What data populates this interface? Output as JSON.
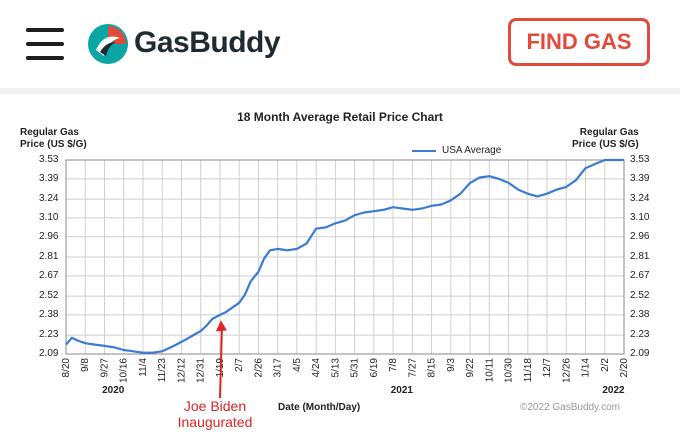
{
  "header": {
    "brand": "GasBuddy",
    "cta_label": "FIND GAS",
    "colors": {
      "accent": "#e24a3b",
      "brand_dark": "#1e2b33",
      "brand_teal": "#0aa5a5",
      "brand_red": "#e24a3b"
    }
  },
  "annotation": {
    "line1": "Joe Biden",
    "line2": "Inaugurated",
    "color": "#e02424"
  },
  "chart_data": {
    "type": "line",
    "title": "18 Month Average Retail Price Chart",
    "ylabel_line1": "Regular Gas",
    "ylabel_line2": "Price (US $/G)",
    "xlabel": "Date (Month/Day)",
    "legend": "USA Average",
    "legend_position": "top-right",
    "copyright": "©2022 GasBuddy.com",
    "grid": true,
    "series_color": "#3a7bd5",
    "ylim": [
      2.09,
      3.53
    ],
    "y_ticks": [
      "3.53",
      "3.39",
      "3.24",
      "3.10",
      "2.96",
      "2.81",
      "2.67",
      "2.52",
      "2.38",
      "2.23",
      "2.09"
    ],
    "x_ticks": [
      "8/20",
      "9/8",
      "9/27",
      "10/16",
      "11/4",
      "11/23",
      "12/12",
      "12/31",
      "1/19",
      "2/7",
      "2/26",
      "3/17",
      "4/5",
      "4/24",
      "5/13",
      "5/31",
      "6/19",
      "7/8",
      "7/27",
      "8/15",
      "9/3",
      "9/22",
      "10/11",
      "10/30",
      "11/18",
      "12/7",
      "12/26",
      "1/14",
      "2/2",
      "2/20"
    ],
    "x_years": [
      {
        "label": "2020",
        "at_index": 2.5
      },
      {
        "label": "2021",
        "at_index": 17.5
      },
      {
        "label": "2022",
        "at_index": 28.5
      }
    ],
    "x_range": [
      0,
      29
    ],
    "series": [
      {
        "name": "USA Average",
        "x": [
          0,
          0.3,
          0.6,
          1,
          1.5,
          2,
          2.5,
          3,
          3.5,
          4,
          4.5,
          5,
          5.3,
          5.6,
          6,
          6.5,
          7,
          7.3,
          7.6,
          8,
          8.3,
          8.6,
          9,
          9.3,
          9.6,
          10,
          10.3,
          10.6,
          11,
          11.5,
          12,
          12.5,
          13,
          13.5,
          14,
          14.5,
          15,
          15.5,
          16,
          16.5,
          17,
          17.5,
          18,
          18.5,
          19,
          19.5,
          20,
          20.5,
          21,
          21.5,
          22,
          22.5,
          23,
          23.5,
          24,
          24.5,
          25,
          25.5,
          26,
          26.5,
          27,
          27.5,
          28,
          28.5,
          29
        ],
        "values": [
          2.16,
          2.21,
          2.19,
          2.17,
          2.16,
          2.15,
          2.14,
          2.12,
          2.11,
          2.1,
          2.1,
          2.11,
          2.13,
          2.15,
          2.18,
          2.22,
          2.26,
          2.3,
          2.35,
          2.38,
          2.4,
          2.43,
          2.47,
          2.53,
          2.63,
          2.7,
          2.8,
          2.86,
          2.87,
          2.86,
          2.87,
          2.91,
          3.02,
          3.03,
          3.06,
          3.08,
          3.12,
          3.14,
          3.15,
          3.16,
          3.18,
          3.17,
          3.16,
          3.17,
          3.19,
          3.2,
          3.23,
          3.28,
          3.36,
          3.4,
          3.41,
          3.39,
          3.36,
          3.31,
          3.28,
          3.26,
          3.28,
          3.31,
          3.33,
          3.38,
          3.47,
          3.5,
          3.53,
          3.53,
          3.53
        ]
      }
    ]
  }
}
